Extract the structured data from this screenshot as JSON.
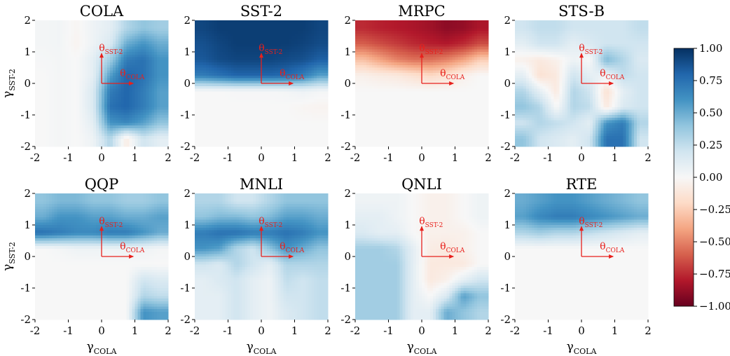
{
  "figure": {
    "x_label": "γCOLA",
    "y_label": "γSST-2",
    "vector_labels": {
      "y_vector": "θSST-2",
      "x_vector": "θCOLA"
    },
    "vector_color": "#e8201c",
    "colormap": [
      "#67001f",
      "#b2182b",
      "#d6604d",
      "#f4a582",
      "#fddbc7",
      "#f7f7f7",
      "#d1e5f0",
      "#92c5de",
      "#4393c3",
      "#2166ac",
      "#053061"
    ]
  },
  "colorbar": {
    "min": -1.0,
    "max": 1.0,
    "ticks": [
      1.0,
      0.75,
      0.5,
      0.25,
      0.0,
      -0.25,
      -0.5,
      -0.75,
      -1.0
    ],
    "tick_labels": [
      "1.00",
      "0.75",
      "0.50",
      "0.25",
      "0.00",
      "−0.25",
      "−0.50",
      "−0.75",
      "−1.00"
    ]
  },
  "chart_data": [
    {
      "type": "heatmap",
      "title": "COLA",
      "xlim": [
        -2,
        2
      ],
      "ylim": [
        -2,
        2
      ],
      "x_ticks": [
        -2,
        -1,
        0,
        1,
        2
      ],
      "y_ticks": [
        -2,
        -1,
        0,
        1,
        2
      ],
      "x_tick_labels": [
        "-2",
        "-1",
        "0",
        "1",
        "2"
      ],
      "y_tick_labels": [
        "-2",
        "-1",
        "0",
        "1",
        "2"
      ],
      "grid_rows_top_to_bottom": [
        [
          0.02,
          0.03,
          -0.02,
          0.05,
          0.1,
          0.3,
          0.4,
          0.35
        ],
        [
          0.02,
          0.03,
          -0.03,
          0.05,
          0.15,
          0.5,
          0.6,
          0.5
        ],
        [
          0.01,
          0.02,
          0.0,
          0.1,
          0.35,
          0.7,
          0.75,
          0.6
        ],
        [
          0.0,
          0.02,
          0.0,
          0.1,
          0.55,
          0.8,
          0.75,
          0.6
        ],
        [
          0.0,
          0.02,
          0.0,
          0.15,
          0.7,
          0.8,
          0.7,
          0.55
        ],
        [
          0.0,
          0.02,
          0.0,
          0.15,
          0.75,
          0.8,
          0.7,
          0.55
        ],
        [
          0.0,
          0.02,
          0.0,
          0.1,
          0.6,
          0.65,
          0.55,
          0.4
        ],
        [
          0.0,
          0.02,
          0.0,
          0.05,
          0.3,
          -0.08,
          0.2,
          0.1
        ]
      ]
    },
    {
      "type": "heatmap",
      "title": "SST-2",
      "xlim": [
        -2,
        2
      ],
      "ylim": [
        -2,
        2
      ],
      "x_ticks": [
        -2,
        -1,
        0,
        1,
        2
      ],
      "y_ticks": [
        -2,
        -1,
        0,
        1,
        2
      ],
      "x_tick_labels": [
        "-2",
        "-1",
        "0",
        "1",
        "2"
      ],
      "y_tick_labels": [
        "-2",
        "-1",
        "0",
        "1",
        "2"
      ],
      "grid_rows_top_to_bottom": [
        [
          0.92,
          0.95,
          0.95,
          0.95,
          0.95,
          0.95,
          0.95,
          0.92
        ],
        [
          0.88,
          0.92,
          0.95,
          0.95,
          0.95,
          0.95,
          0.93,
          0.9
        ],
        [
          0.85,
          0.9,
          0.92,
          0.92,
          0.92,
          0.9,
          0.88,
          0.82
        ],
        [
          0.7,
          0.75,
          0.8,
          0.8,
          0.8,
          0.78,
          0.7,
          0.55
        ],
        [
          0.0,
          0.0,
          0.01,
          0.01,
          0.01,
          0.02,
          0.05,
          0.02
        ],
        [
          0.0,
          0.0,
          0.0,
          0.0,
          0.0,
          0.0,
          -0.02,
          -0.03
        ],
        [
          0.0,
          0.0,
          0.0,
          0.0,
          0.0,
          0.0,
          0.0,
          0.0
        ],
        [
          0.0,
          0.0,
          0.0,
          0.0,
          0.0,
          0.0,
          0.0,
          0.0
        ]
      ]
    },
    {
      "type": "heatmap",
      "title": "MRPC",
      "xlim": [
        -2,
        2
      ],
      "ylim": [
        -2,
        2
      ],
      "x_ticks": [
        -2,
        -1,
        0,
        1,
        2
      ],
      "y_ticks": [
        -2,
        -1,
        0,
        1,
        2
      ],
      "x_tick_labels": [
        "-2",
        "-1",
        "0",
        "1",
        "2"
      ],
      "y_tick_labels": [
        "-2",
        "-1",
        "0",
        "1",
        "2"
      ],
      "grid_rows_top_to_bottom": [
        [
          -0.75,
          -0.78,
          -0.8,
          -0.82,
          -0.85,
          -0.9,
          -0.88,
          -0.82
        ],
        [
          -0.6,
          -0.65,
          -0.7,
          -0.75,
          -0.78,
          -0.8,
          -0.75,
          -0.65
        ],
        [
          -0.3,
          -0.4,
          -0.5,
          -0.55,
          -0.55,
          -0.5,
          -0.4,
          -0.25
        ],
        [
          -0.05,
          -0.08,
          -0.1,
          -0.15,
          -0.2,
          -0.15,
          -0.05,
          0.0
        ],
        [
          0.0,
          0.0,
          0.0,
          0.0,
          0.0,
          0.0,
          0.0,
          0.0
        ],
        [
          0.0,
          0.0,
          0.0,
          0.0,
          0.0,
          0.0,
          0.0,
          0.0
        ],
        [
          0.0,
          0.0,
          0.0,
          0.0,
          0.0,
          0.0,
          0.0,
          0.0
        ],
        [
          0.0,
          0.0,
          0.0,
          0.0,
          0.0,
          0.0,
          0.0,
          0.0
        ]
      ]
    },
    {
      "type": "heatmap",
      "title": "STS-B",
      "xlim": [
        -2,
        2
      ],
      "ylim": [
        -2,
        2
      ],
      "x_ticks": [
        -2,
        -1,
        0,
        1,
        2
      ],
      "y_ticks": [
        -2,
        -1,
        0,
        1,
        2
      ],
      "x_tick_labels": [
        "-2",
        "-1",
        "0",
        "1",
        "2"
      ],
      "y_tick_labels": [
        "-2",
        "-1",
        "0",
        "1",
        "2"
      ],
      "grid_rows_top_to_bottom": [
        [
          0.2,
          0.25,
          0.25,
          0.2,
          0.2,
          0.2,
          0.2,
          0.25
        ],
        [
          0.1,
          0.2,
          0.2,
          0.1,
          0.15,
          0.2,
          0.2,
          0.2
        ],
        [
          -0.05,
          -0.1,
          -0.05,
          0.05,
          0.0,
          0.45,
          0.3,
          0.15
        ],
        [
          0.1,
          -0.15,
          -0.1,
          0.2,
          0.1,
          0.05,
          0.25,
          0.2
        ],
        [
          0.3,
          0.1,
          -0.1,
          0.3,
          0.2,
          -0.15,
          0.1,
          0.2
        ],
        [
          0.4,
          0.3,
          0.0,
          0.3,
          0.25,
          -0.1,
          0.15,
          0.2
        ],
        [
          0.2,
          0.3,
          0.25,
          0.2,
          0.1,
          0.6,
          0.7,
          0.3
        ],
        [
          0.4,
          0.2,
          0.15,
          0.1,
          0.2,
          0.75,
          0.75,
          0.2
        ]
      ]
    },
    {
      "type": "heatmap",
      "title": "QQP",
      "xlim": [
        -2,
        2
      ],
      "ylim": [
        -2,
        2
      ],
      "x_ticks": [
        -2,
        -1,
        0,
        1,
        2
      ],
      "y_ticks": [
        -2,
        -1,
        0,
        1,
        2
      ],
      "x_tick_labels": [
        "-2",
        "-1",
        "0",
        "1",
        "2"
      ],
      "y_tick_labels": [
        "-2",
        "-1",
        "0",
        "1",
        "2"
      ],
      "grid_rows_top_to_bottom": [
        [
          0.4,
          0.45,
          0.45,
          0.4,
          0.4,
          0.35,
          0.35,
          0.4
        ],
        [
          0.5,
          0.6,
          0.6,
          0.55,
          0.55,
          0.5,
          0.5,
          0.55
        ],
        [
          0.75,
          0.7,
          0.65,
          0.65,
          0.7,
          0.7,
          0.6,
          0.5
        ],
        [
          0.0,
          0.02,
          0.05,
          0.05,
          0.05,
          0.05,
          0.05,
          0.02
        ],
        [
          0.0,
          0.0,
          0.0,
          0.0,
          0.0,
          0.0,
          0.0,
          0.0
        ],
        [
          0.0,
          0.0,
          0.0,
          0.0,
          0.0,
          0.0,
          0.2,
          0.15
        ],
        [
          0.0,
          0.0,
          0.0,
          0.0,
          0.0,
          0.0,
          0.3,
          0.25
        ],
        [
          0.0,
          0.0,
          0.0,
          0.0,
          0.0,
          0.0,
          0.6,
          0.55
        ]
      ]
    },
    {
      "type": "heatmap",
      "title": "MNLI",
      "xlim": [
        -2,
        2
      ],
      "ylim": [
        -2,
        2
      ],
      "x_ticks": [
        -2,
        -1,
        0,
        1,
        2
      ],
      "y_ticks": [
        -2,
        -1,
        0,
        1,
        2
      ],
      "x_tick_labels": [
        "-2",
        "-1",
        "0",
        "1",
        "2"
      ],
      "y_tick_labels": [
        "-2",
        "-1",
        "0",
        "1",
        "2"
      ],
      "grid_rows_top_to_bottom": [
        [
          0.3,
          0.3,
          0.2,
          0.2,
          0.3,
          0.4,
          0.4,
          0.4
        ],
        [
          0.4,
          0.45,
          0.45,
          0.4,
          0.45,
          0.55,
          0.55,
          0.5
        ],
        [
          0.7,
          0.75,
          0.75,
          0.7,
          0.7,
          0.75,
          0.7,
          0.6
        ],
        [
          0.6,
          0.55,
          0.3,
          0.2,
          0.4,
          0.6,
          0.5,
          0.4
        ],
        [
          0.2,
          0.15,
          0.3,
          0.2,
          0.1,
          0.3,
          0.3,
          0.3
        ],
        [
          0.1,
          0.15,
          0.2,
          0.1,
          0.05,
          0.25,
          0.2,
          0.25
        ],
        [
          0.1,
          0.1,
          0.2,
          0.1,
          0.05,
          0.2,
          0.2,
          0.25
        ],
        [
          0.1,
          0.1,
          0.2,
          0.1,
          0.05,
          0.15,
          0.2,
          0.25
        ]
      ]
    },
    {
      "type": "heatmap",
      "title": "QNLI",
      "xlim": [
        -2,
        2
      ],
      "ylim": [
        -2,
        2
      ],
      "x_ticks": [
        -2,
        -1,
        0,
        1,
        2
      ],
      "y_ticks": [
        -2,
        -1,
        0,
        1,
        2
      ],
      "x_tick_labels": [
        "-2",
        "-1",
        "0",
        "1",
        "2"
      ],
      "y_tick_labels": [
        "-2",
        "-1",
        "0",
        "1",
        "2"
      ],
      "grid_rows_top_to_bottom": [
        [
          0.05,
          0.05,
          0.05,
          0.0,
          -0.05,
          -0.05,
          0.0,
          0.05
        ],
        [
          0.1,
          0.1,
          0.05,
          0.0,
          -0.05,
          -0.05,
          0.0,
          0.05
        ],
        [
          0.15,
          0.1,
          0.1,
          0.0,
          -0.05,
          -0.05,
          -0.05,
          0.0
        ],
        [
          0.35,
          0.35,
          0.3,
          0.1,
          -0.08,
          -0.1,
          -0.05,
          0.0
        ],
        [
          0.35,
          0.35,
          0.35,
          0.1,
          -0.1,
          -0.1,
          -0.1,
          0.0
        ],
        [
          0.35,
          0.35,
          0.35,
          0.1,
          -0.1,
          -0.05,
          0.1,
          0.2
        ],
        [
          0.35,
          0.35,
          0.35,
          0.1,
          0.0,
          0.15,
          0.55,
          0.4
        ],
        [
          0.35,
          0.35,
          0.35,
          0.1,
          0.1,
          0.5,
          0.4,
          0.3
        ]
      ]
    },
    {
      "type": "heatmap",
      "title": "RTE",
      "xlim": [
        -2,
        2
      ],
      "ylim": [
        -2,
        2
      ],
      "x_ticks": [
        -2,
        -1,
        0,
        1,
        2
      ],
      "y_ticks": [
        -2,
        -1,
        0,
        1,
        2
      ],
      "x_tick_labels": [
        "-2",
        "-1",
        "0",
        "1",
        "2"
      ],
      "y_tick_labels": [
        "-2",
        "-1",
        "0",
        "1",
        "2"
      ],
      "grid_rows_top_to_bottom": [
        [
          0.5,
          0.55,
          0.6,
          0.6,
          0.55,
          0.5,
          0.45,
          0.4
        ],
        [
          0.55,
          0.65,
          0.7,
          0.7,
          0.65,
          0.6,
          0.55,
          0.5
        ],
        [
          0.3,
          0.35,
          0.3,
          0.3,
          0.25,
          0.2,
          0.15,
          0.1
        ],
        [
          0.0,
          0.0,
          0.0,
          0.0,
          0.0,
          0.0,
          0.0,
          0.0
        ],
        [
          0.0,
          0.0,
          0.0,
          0.0,
          0.0,
          0.0,
          0.0,
          0.0
        ],
        [
          0.0,
          0.0,
          0.0,
          0.0,
          0.0,
          0.0,
          0.0,
          0.0
        ],
        [
          0.0,
          0.0,
          0.0,
          0.0,
          0.0,
          0.0,
          0.0,
          0.0
        ],
        [
          0.0,
          0.0,
          0.0,
          0.0,
          0.0,
          0.0,
          0.0,
          0.0
        ]
      ]
    }
  ]
}
